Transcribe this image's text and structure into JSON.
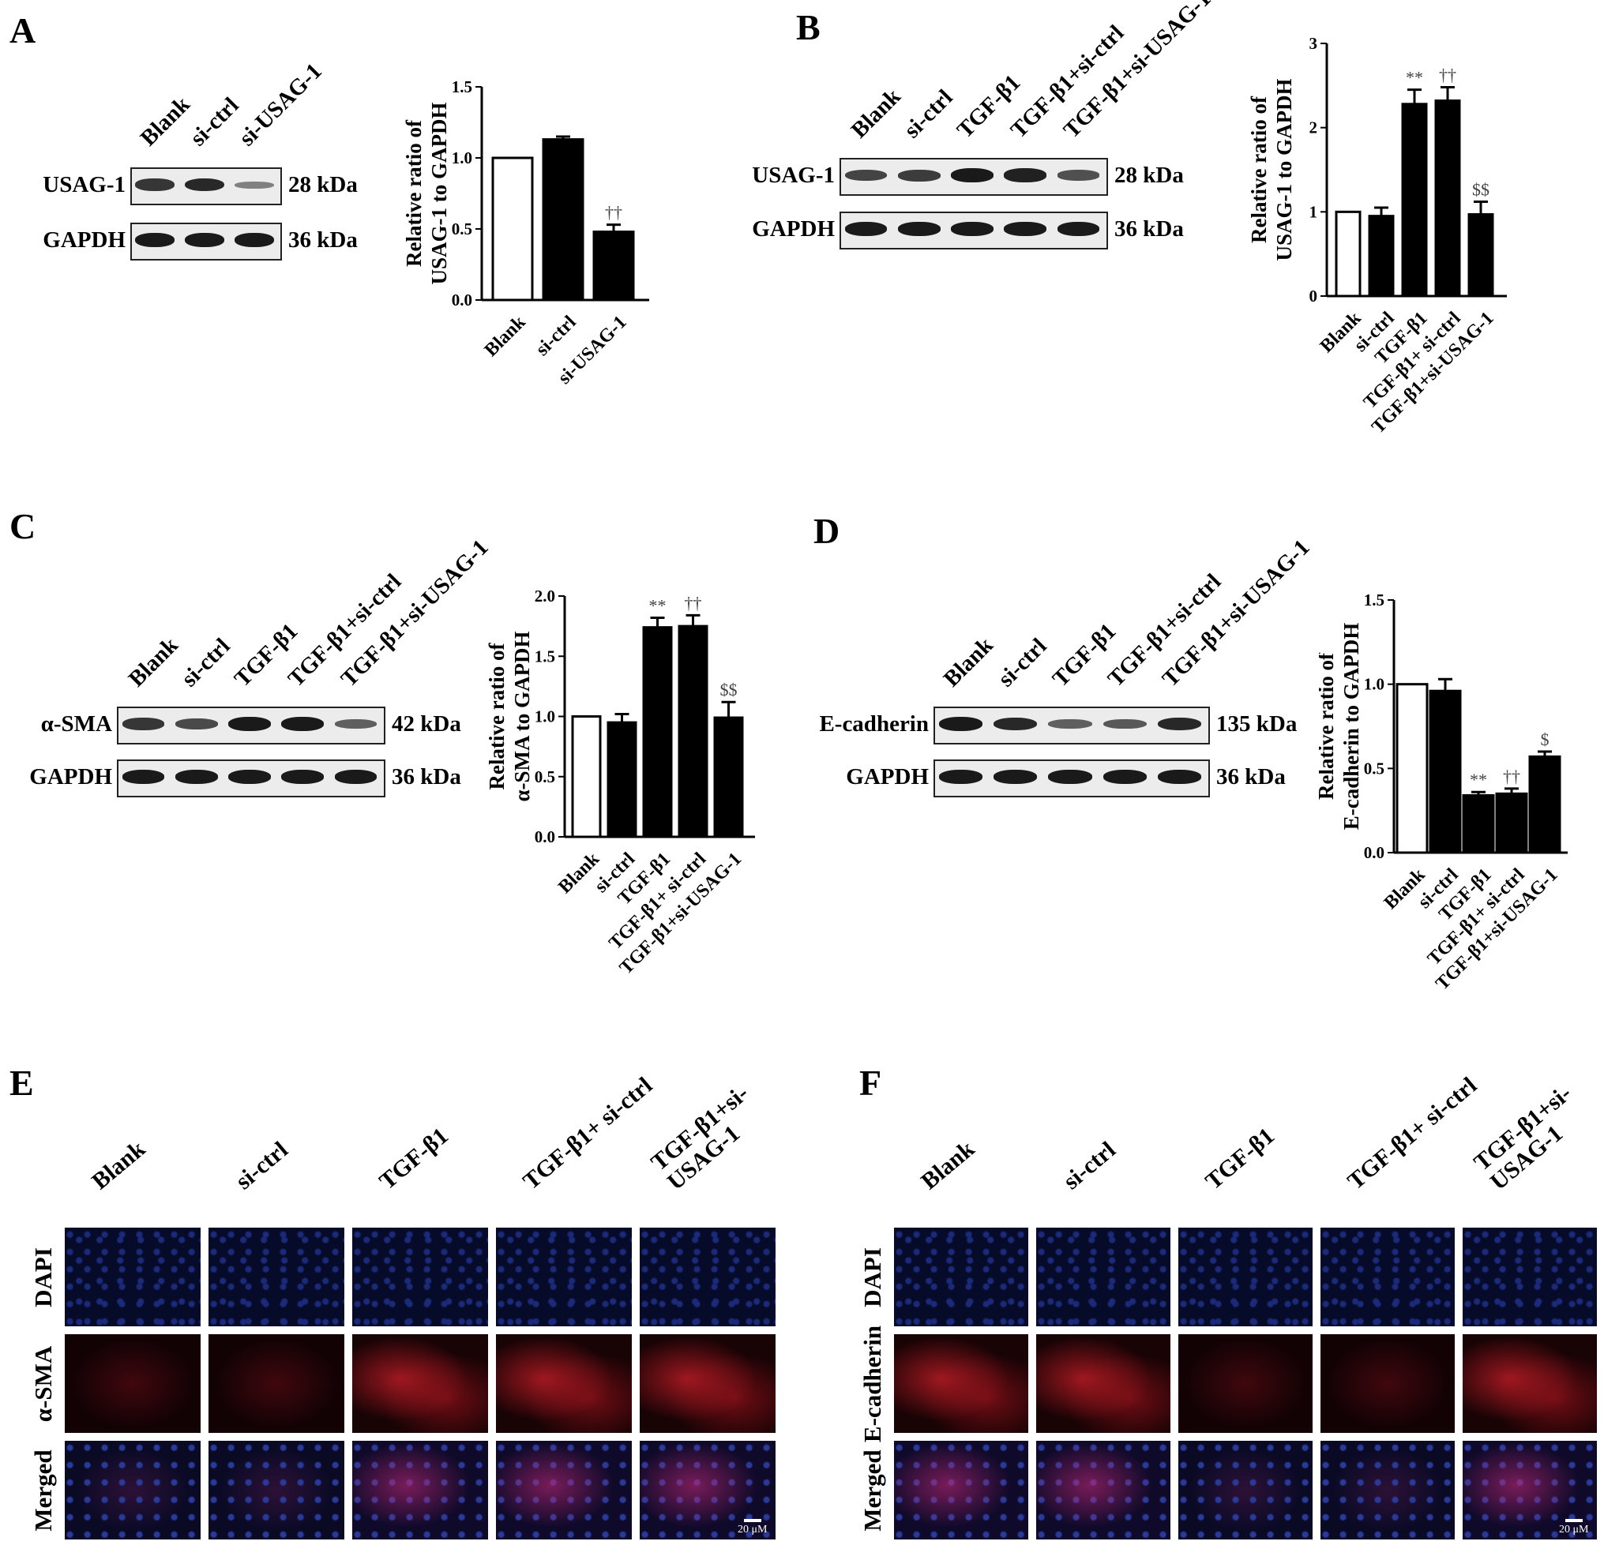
{
  "panels": {
    "A": {
      "label": "A",
      "lanes": [
        "Blank",
        "si-ctrl",
        "si-USAG-1"
      ],
      "rows": [
        {
          "name": "USAG-1",
          "kda": "28 kDa",
          "bands": [
            0.8,
            0.9,
            0.25
          ]
        },
        {
          "name": "GAPDH",
          "kda": "36 kDa",
          "bands": [
            1,
            1,
            1
          ]
        }
      ]
    },
    "B": {
      "label": "B",
      "lanes": [
        "Blank",
        "si-ctrl",
        "TGF-β1",
        "TGF-β1+si-ctrl",
        "TGF-β1+si-USAG-1"
      ],
      "rows": [
        {
          "name": "USAG-1",
          "kda": "28 kDa",
          "bands": [
            0.7,
            0.75,
            1,
            0.95,
            0.6
          ]
        },
        {
          "name": "GAPDH",
          "kda": "36 kDa",
          "bands": [
            1,
            1,
            1,
            1,
            1
          ]
        }
      ]
    },
    "C": {
      "label": "C",
      "lanes": [
        "Blank",
        "si-ctrl",
        "TGF-β1",
        "TGF-β1+si-ctrl",
        "TGF-β1+si-USAG-1"
      ],
      "rows": [
        {
          "name": "α-SMA",
          "kda": "42 kDa",
          "bands": [
            0.8,
            0.65,
            1,
            1,
            0.5
          ]
        },
        {
          "name": "GAPDH",
          "kda": "36 kDa",
          "bands": [
            1,
            1,
            1,
            1,
            1
          ]
        }
      ]
    },
    "D": {
      "label": "D",
      "lanes": [
        "Blank",
        "si-ctrl",
        "TGF-β1",
        "TGF-β1+si-ctrl",
        "TGF-β1+si-USAG-1"
      ],
      "rows": [
        {
          "name": "E-cadherin",
          "kda": "135 kDa",
          "bands": [
            1,
            0.9,
            0.5,
            0.55,
            0.9
          ]
        },
        {
          "name": "GAPDH",
          "kda": "36 kDa",
          "bands": [
            1,
            1,
            1,
            1,
            1
          ]
        }
      ]
    },
    "E": {
      "label": "E",
      "columns": [
        "Blank",
        "si-ctrl",
        "TGF-β1",
        "TGF-β1+ si-ctrl",
        "TGF-β1+si-\nUSAG-1"
      ],
      "rows": [
        "DAPI",
        "α-SMA",
        "Merged"
      ],
      "red_level": [
        0.35,
        0.3,
        0.9,
        0.8,
        0.6
      ],
      "scale": "20 μM"
    },
    "F": {
      "label": "F",
      "columns": [
        "Blank",
        "si-ctrl",
        "TGF-β1",
        "TGF-β1+ si-ctrl",
        "TGF-β1+si-\nUSAG-1"
      ],
      "rows": [
        "DAPI",
        "E-cadherin",
        "Merged"
      ],
      "red_level": [
        0.9,
        0.85,
        0.2,
        0.2,
        0.7
      ],
      "scale": "20 μM"
    }
  },
  "chart_data": [
    {
      "panel": "A",
      "type": "bar",
      "categories": [
        "Blank",
        "si-ctrl",
        "si-USAG-1"
      ],
      "values": [
        1.0,
        1.13,
        0.48
      ],
      "errors": [
        0,
        0.02,
        0.05
      ],
      "fills": [
        "#ffffff",
        "#000000",
        "#000000"
      ],
      "annotations": [
        "",
        "",
        "††"
      ],
      "ylabel": "Relative ratio of\nUSAG-1 to GAPDH",
      "ylim": [
        0,
        1.5
      ],
      "yticks": [
        "0.0",
        "0.5",
        "1.0",
        "1.5"
      ]
    },
    {
      "panel": "B",
      "type": "bar",
      "categories": [
        "Blank",
        "si-ctrl",
        "TGF-β1",
        "TGF-β1+ si-ctrl",
        "TGF-β1+si-USAG-1"
      ],
      "values": [
        1.0,
        0.95,
        2.28,
        2.32,
        0.97
      ],
      "errors": [
        0,
        0.1,
        0.17,
        0.16,
        0.15
      ],
      "fills": [
        "#ffffff",
        "#000000",
        "#000000",
        "#000000",
        "#000000"
      ],
      "annotations": [
        "",
        "",
        "**",
        "††",
        "$$"
      ],
      "ylabel": "Relative ratio of\nUSAG-1 to GAPDH",
      "ylim": [
        0,
        3
      ],
      "yticks": [
        "0",
        "1",
        "2",
        "3"
      ]
    },
    {
      "panel": "C",
      "type": "bar",
      "categories": [
        "Blank",
        "si-ctrl",
        "TGF-β1",
        "TGF-β1+ si-ctrl",
        "TGF-β1+si-USAG-1"
      ],
      "values": [
        1.0,
        0.95,
        1.74,
        1.75,
        0.99
      ],
      "errors": [
        0,
        0.07,
        0.08,
        0.09,
        0.13
      ],
      "fills": [
        "#ffffff",
        "#000000",
        "#000000",
        "#000000",
        "#000000"
      ],
      "annotations": [
        "",
        "",
        "**",
        "††",
        "$$"
      ],
      "ylabel": "Relative ratio of\nα-SMA to GAPDH",
      "ylim": [
        0,
        2.0
      ],
      "yticks": [
        "0.0",
        "0.5",
        "1.0",
        "1.5",
        "2.0"
      ]
    },
    {
      "panel": "D",
      "type": "bar",
      "categories": [
        "Blank",
        "si-ctrl",
        "TGF-β1",
        "TGF-β1+ si-ctrl",
        "TGF-β1+si-USAG-1"
      ],
      "values": [
        1.0,
        0.96,
        0.34,
        0.35,
        0.57
      ],
      "errors": [
        0,
        0.07,
        0.02,
        0.03,
        0.03
      ],
      "fills": [
        "#ffffff",
        "#000000",
        "#000000",
        "#000000",
        "#000000"
      ],
      "annotations": [
        "",
        "",
        "**",
        "††",
        "$"
      ],
      "ylabel": "Relative ratio of\nE-cadherin to GAPDH",
      "ylim": [
        0,
        1.5
      ],
      "yticks": [
        "0.0",
        "0.5",
        "1.0",
        "1.5"
      ]
    }
  ]
}
